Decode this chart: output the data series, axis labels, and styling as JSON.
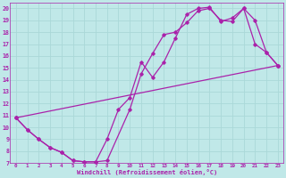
{
  "background_color": "#c0e8e8",
  "line_color": "#aa22aa",
  "marker_color": "#aa22aa",
  "grid_color": "#aad8d8",
  "xlabel": "Windchill (Refroidissement éolien,°C)",
  "xlim": [
    -0.5,
    23.5
  ],
  "ylim": [
    7,
    20.5
  ],
  "xticks": [
    0,
    1,
    2,
    3,
    4,
    5,
    6,
    7,
    8,
    9,
    10,
    11,
    12,
    13,
    14,
    15,
    16,
    17,
    18,
    19,
    20,
    21,
    22,
    23
  ],
  "yticks": [
    7,
    8,
    9,
    10,
    11,
    12,
    13,
    14,
    15,
    16,
    17,
    18,
    19,
    20
  ],
  "line1_x": [
    0,
    1,
    2,
    3,
    4,
    5,
    6,
    7,
    8,
    10,
    11,
    12,
    13,
    14,
    15,
    16,
    17,
    18,
    19,
    20,
    21,
    22,
    23
  ],
  "line1_y": [
    10.8,
    9.8,
    9.0,
    8.3,
    7.9,
    7.2,
    7.1,
    7.1,
    7.2,
    11.5,
    14.5,
    16.2,
    17.8,
    18.0,
    18.8,
    19.8,
    20.0,
    19.0,
    18.9,
    20.0,
    19.0,
    16.3,
    15.2
  ],
  "line2_x": [
    0,
    1,
    2,
    3,
    4,
    5,
    6,
    7,
    8,
    9,
    10,
    11,
    12,
    13,
    14,
    15,
    16,
    17,
    18,
    19,
    20,
    21,
    22,
    23
  ],
  "line2_y": [
    10.8,
    9.8,
    9.0,
    8.3,
    7.9,
    7.2,
    7.1,
    7.1,
    9.0,
    11.5,
    12.5,
    15.5,
    14.2,
    15.5,
    17.5,
    19.5,
    20.0,
    20.1,
    18.9,
    19.2,
    20.0,
    17.0,
    16.3,
    15.2
  ],
  "line3_x": [
    0,
    23
  ],
  "line3_y": [
    10.8,
    15.2
  ]
}
